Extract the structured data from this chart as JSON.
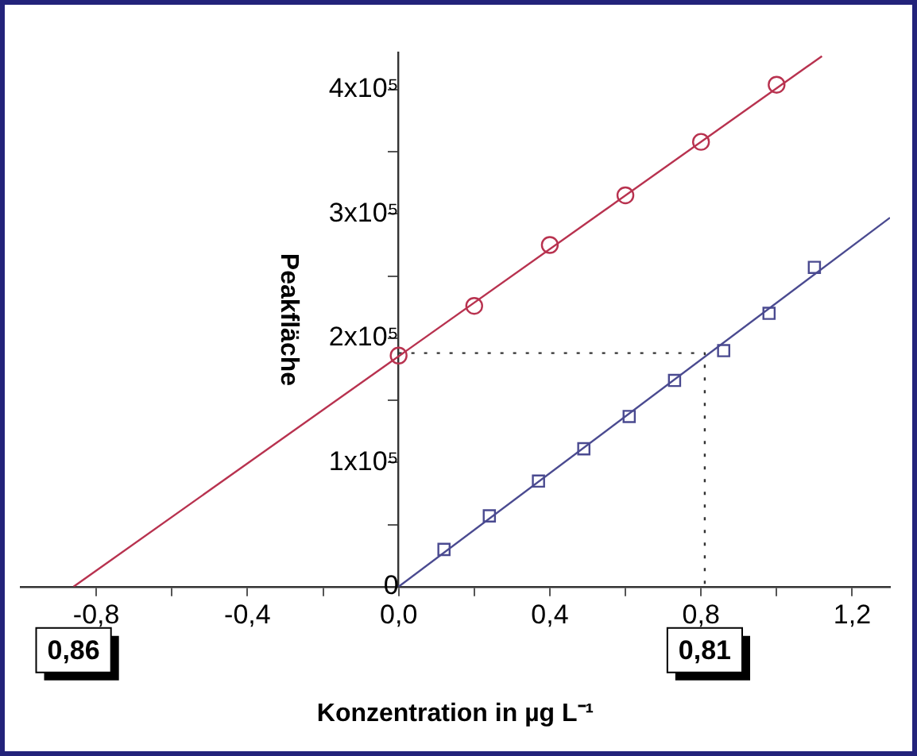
{
  "chart_data": {
    "type": "scatter",
    "xlabel": "Konzentration in µg L⁻¹",
    "ylabel": "Peakfläche",
    "xlim": [
      -1.0,
      1.3
    ],
    "ylim": [
      0,
      430000
    ],
    "xticks": [
      {
        "value": -0.8,
        "label": "-0,8"
      },
      {
        "value": -0.6,
        "label": null
      },
      {
        "value": -0.4,
        "label": "-0,4"
      },
      {
        "value": -0.2,
        "label": null
      },
      {
        "value": 0,
        "label": "0,0"
      },
      {
        "value": 0.2,
        "label": null
      },
      {
        "value": 0.4,
        "label": "0,4"
      },
      {
        "value": 0.6,
        "label": null
      },
      {
        "value": 0.8,
        "label": "0,8"
      },
      {
        "value": 1.0,
        "label": null
      },
      {
        "value": 1.2,
        "label": "1,2"
      }
    ],
    "yticks": [
      0,
      {
        "value": 50000,
        "label": null
      },
      {
        "value": 100000,
        "label": "1x10⁵"
      },
      {
        "value": 150000,
        "label": null
      },
      {
        "value": 200000,
        "label": "2x10⁵"
      },
      {
        "value": 250000,
        "label": null
      },
      {
        "value": 300000,
        "label": "3x10⁵"
      },
      {
        "value": 350000,
        "label": null
      },
      {
        "value": 400000,
        "label": "4x10⁵"
      }
    ],
    "grid": false,
    "legend": false,
    "series": [
      {
        "type": "scatter",
        "color": "#b8324f",
        "marker": "circle",
        "x": [
          0,
          0.2,
          0.4,
          0.6,
          0.8,
          1.0
        ],
        "values": [
          186000,
          226000,
          275000,
          315000,
          358000,
          404000
        ]
      },
      {
        "type": "scatter",
        "color": "#4a4a90",
        "marker": "square",
        "x": [
          0.12,
          0.24,
          0.37,
          0.49,
          0.61,
          0.73,
          0.86,
          0.98,
          1.1
        ],
        "values": [
          30000,
          57000,
          85000,
          111000,
          137000,
          166000,
          190000,
          220000,
          257000
        ]
      },
      {
        "type": "line",
        "color": "#b8324f",
        "marker": "none",
        "x": [
          -0.86,
          1.12
        ],
        "values": [
          0,
          427000
        ]
      },
      {
        "type": "line",
        "color": "#4a4a90",
        "marker": "none",
        "x": [
          0,
          1.3
        ],
        "values": [
          0,
          297000
        ]
      },
      {
        "type": "line",
        "color": "#333333",
        "marker": "none",
        "line_style": "dotted",
        "x": [
          0,
          0.81,
          0.81
        ],
        "values": [
          188000,
          188000,
          0
        ]
      }
    ],
    "annotations": [
      {
        "text": "0,86",
        "x": -0.86,
        "y": 0
      },
      {
        "text": "0,81",
        "x": 0.81,
        "y": 0
      }
    ]
  }
}
